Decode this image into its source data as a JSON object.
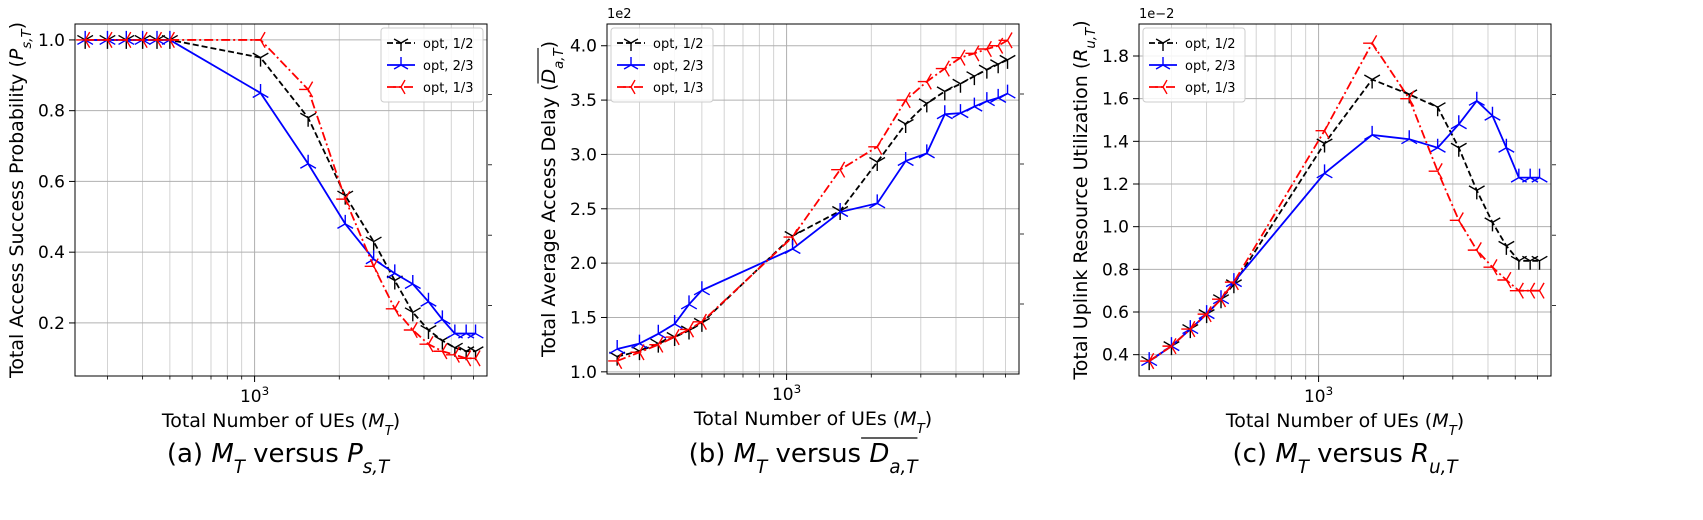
{
  "chart_data": [
    {
      "type": "line",
      "caption": "(a) M_T versus P_s,T",
      "caption_parts": {
        "prefix": "(a) ",
        "mid": " versus "
      },
      "xlabel": "Total Number of UEs (M_T)",
      "ylabel": "Total Access Success Probability (P_s,T)",
      "xscale": "log",
      "xlim": [
        230,
        6700
      ],
      "ylim": [
        0.05,
        1.045
      ],
      "major_xtick_label": "10^3",
      "yticks": [
        0.2,
        0.4,
        0.6,
        0.8,
        1.0
      ],
      "ytick_labels": [
        "0.2",
        "0.4",
        "0.6",
        "0.8",
        "1.0"
      ],
      "y_exponent": "",
      "grid": true,
      "legend": "top-right",
      "x": [
        250,
        300,
        350,
        400,
        450,
        500,
        1050,
        1550,
        2100,
        2650,
        3150,
        3650,
        4150,
        4650,
        5150,
        5650,
        6100
      ],
      "series": [
        {
          "name": "opt, 1/2",
          "color": "#000000",
          "linestyle": "dashed",
          "marker": "tri_down",
          "values": [
            1.0,
            1.0,
            1.0,
            1.0,
            1.0,
            1.0,
            0.95,
            0.78,
            0.56,
            0.43,
            0.32,
            0.23,
            0.18,
            0.15,
            0.13,
            0.12,
            0.12
          ]
        },
        {
          "name": "opt, 2/3",
          "color": "#0000ff",
          "linestyle": "solid",
          "marker": "tri_up",
          "values": [
            1.0,
            1.0,
            1.0,
            1.0,
            1.0,
            1.0,
            0.85,
            0.65,
            0.48,
            0.38,
            0.34,
            0.31,
            0.26,
            0.21,
            0.17,
            0.17,
            0.17
          ]
        },
        {
          "name": "opt, 1/3",
          "color": "#ff0000",
          "linestyle": "dashdot",
          "marker": "tri_left",
          "values": [
            1.0,
            1.0,
            1.0,
            1.0,
            1.0,
            1.0,
            1.0,
            0.86,
            0.55,
            0.36,
            0.24,
            0.18,
            0.14,
            0.12,
            0.11,
            0.1,
            0.1
          ]
        }
      ]
    },
    {
      "type": "line",
      "caption": "(b) M_T versus overline D_a,T",
      "caption_parts": {
        "prefix": "(b) ",
        "mid": " versus "
      },
      "xlabel": "Total Number of UEs (M_T)",
      "ylabel": "Total Average Access Delay (overline D_a,T)",
      "xscale": "log",
      "xlim": [
        230,
        6700
      ],
      "ylim": [
        0.98,
        4.2
      ],
      "major_xtick_label": "10^3",
      "yticks": [
        1.0,
        1.5,
        2.0,
        2.5,
        3.0,
        3.5,
        4.0
      ],
      "ytick_labels": [
        "1.0",
        "1.5",
        "2.0",
        "2.5",
        "3.0",
        "3.5",
        "4.0"
      ],
      "y_exponent": "1e2",
      "grid": true,
      "legend": "top-left",
      "x": [
        250,
        300,
        350,
        400,
        450,
        500,
        1050,
        1550,
        2100,
        2650,
        3150,
        3650,
        4150,
        4650,
        5150,
        5650,
        6100
      ],
      "series": [
        {
          "name": "opt, 1/2",
          "color": "#000000",
          "linestyle": "dashed",
          "marker": "tri_down",
          "values": [
            1.14,
            1.19,
            1.26,
            1.32,
            1.38,
            1.45,
            2.25,
            2.48,
            2.93,
            3.28,
            3.47,
            3.58,
            3.65,
            3.72,
            3.78,
            3.83,
            3.87
          ]
        },
        {
          "name": "opt, 2/3",
          "color": "#0000ff",
          "linestyle": "solid",
          "marker": "tri_up",
          "values": [
            1.21,
            1.26,
            1.35,
            1.44,
            1.62,
            1.75,
            2.13,
            2.47,
            2.55,
            2.94,
            3.01,
            3.37,
            3.38,
            3.44,
            3.49,
            3.52,
            3.56
          ]
        },
        {
          "name": "opt, 1/3",
          "color": "#ff0000",
          "linestyle": "dashdot",
          "marker": "tri_left",
          "values": [
            1.1,
            1.18,
            1.25,
            1.32,
            1.39,
            1.46,
            2.24,
            2.86,
            3.07,
            3.5,
            3.67,
            3.79,
            3.89,
            3.93,
            3.97,
            4.0,
            4.05
          ]
        }
      ]
    },
    {
      "type": "line",
      "caption": "(c) M_T versus R_u,T",
      "caption_parts": {
        "prefix": "(c) ",
        "mid": " versus "
      },
      "xlabel": "Total Number of UEs (M_T)",
      "ylabel": "Total Uplink Resource Utilization (R_u,T)",
      "xscale": "log",
      "xlim": [
        230,
        6700
      ],
      "ylim": [
        0.3,
        1.95
      ],
      "major_xtick_label": "10^3",
      "yticks": [
        0.4,
        0.6,
        0.8,
        1.0,
        1.2,
        1.4,
        1.6,
        1.8
      ],
      "ytick_labels": [
        "0.4",
        "0.6",
        "0.8",
        "1.0",
        "1.2",
        "1.4",
        "1.6",
        "1.8"
      ],
      "y_exponent": "1e−2",
      "grid": true,
      "legend": "top-left",
      "x": [
        250,
        300,
        350,
        400,
        450,
        500,
        1050,
        1550,
        2100,
        2650,
        3150,
        3650,
        4150,
        4650,
        5150,
        5650,
        6100
      ],
      "series": [
        {
          "name": "opt, 1/2",
          "color": "#000000",
          "linestyle": "dashed",
          "marker": "tri_down",
          "values": [
            0.37,
            0.44,
            0.52,
            0.59,
            0.66,
            0.73,
            1.39,
            1.69,
            1.62,
            1.56,
            1.37,
            1.17,
            1.02,
            0.91,
            0.84,
            0.84,
            0.84
          ]
        },
        {
          "name": "opt, 2/3",
          "color": "#0000ff",
          "linestyle": "solid",
          "marker": "tri_up",
          "values": [
            0.37,
            0.44,
            0.52,
            0.59,
            0.66,
            0.74,
            1.25,
            1.43,
            1.41,
            1.37,
            1.48,
            1.59,
            1.52,
            1.37,
            1.23,
            1.23,
            1.23
          ]
        },
        {
          "name": "opt, 1/3",
          "color": "#ff0000",
          "linestyle": "dashdot",
          "marker": "tri_left",
          "values": [
            0.37,
            0.44,
            0.52,
            0.59,
            0.66,
            0.74,
            1.45,
            1.86,
            1.6,
            1.26,
            1.03,
            0.89,
            0.81,
            0.75,
            0.7,
            0.7,
            0.7
          ]
        }
      ]
    }
  ]
}
